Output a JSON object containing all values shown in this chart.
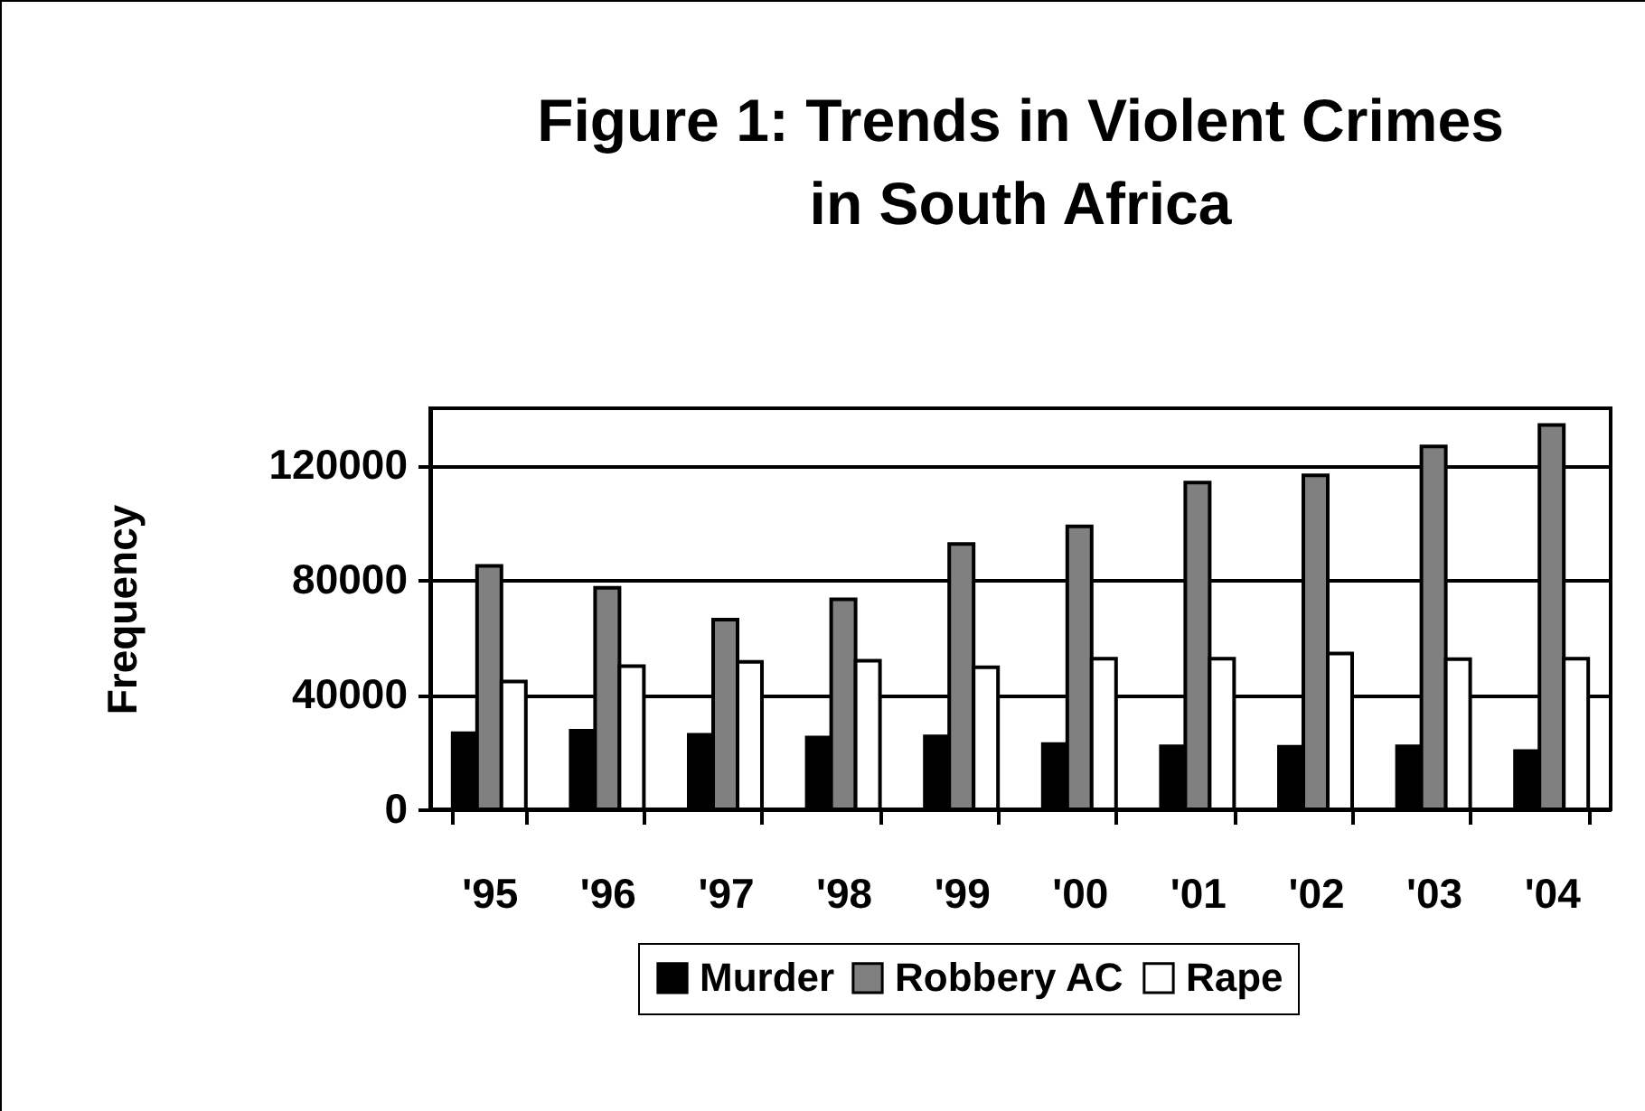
{
  "chart_data": {
    "type": "bar",
    "title": [
      "Figure 1: Trends in Violent Crimes",
      "in South Africa"
    ],
    "ylabel": "Frequency",
    "categories": [
      "'95",
      "'96",
      "'97",
      "'98",
      "'99",
      "'00",
      "'01",
      "'02",
      "'03",
      "'04"
    ],
    "series": [
      {
        "name": "Murder",
        "color": "#000000",
        "values": [
          26600,
          27400,
          26000,
          25100,
          25500,
          22800,
          22000,
          21800,
          22000,
          20300
        ]
      },
      {
        "name": "Robbery AC",
        "color": "#808080",
        "values": [
          85000,
          77300,
          66200,
          73300,
          92600,
          98800,
          114100,
          116600,
          126700,
          134200
        ]
      },
      {
        "name": "Rape",
        "color": "#ffffff",
        "values": [
          44600,
          50000,
          51500,
          51900,
          49600,
          52600,
          52600,
          54400,
          52400,
          52600
        ]
      }
    ],
    "ylim": [
      0,
      140000
    ],
    "yticks": [
      0,
      40000,
      80000,
      120000
    ],
    "grid": "y",
    "legend": "bottom"
  }
}
